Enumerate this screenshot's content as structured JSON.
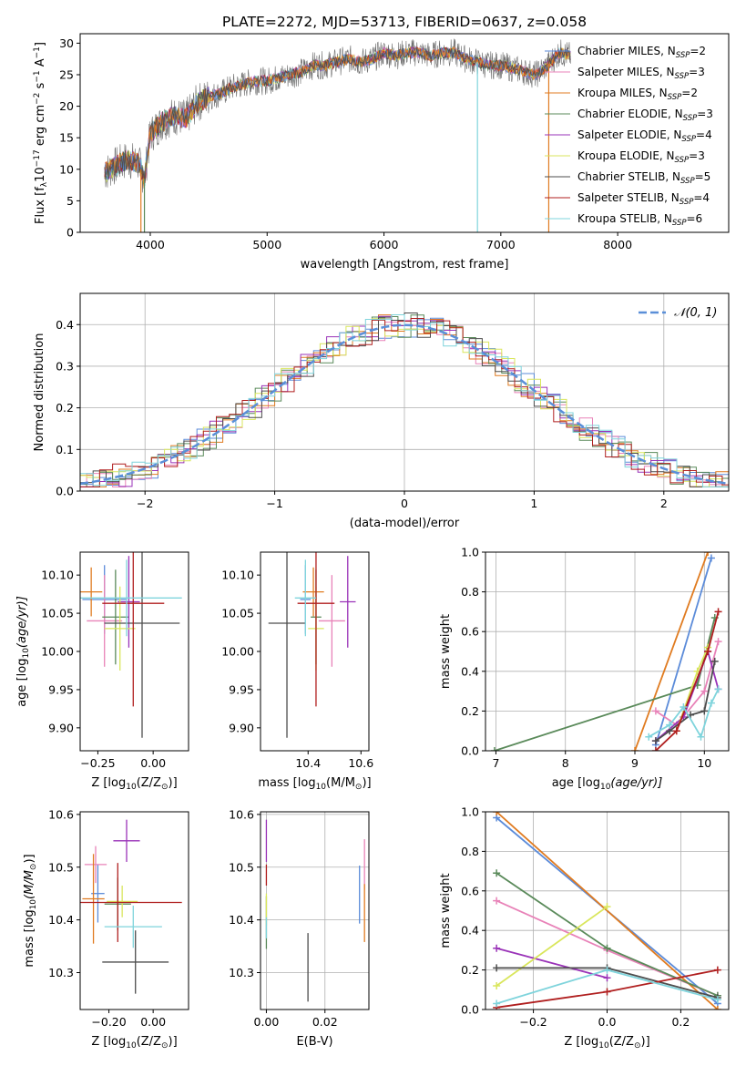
{
  "figure_title": "PLATE=2272, MJD=53713, FIBERID=0637, z=0.058",
  "colors": [
    "#5b8bd9",
    "#e882b8",
    "#e07b20",
    "#5a8a5a",
    "#9a33b8",
    "#d9e65c",
    "#4d4d4d",
    "#b01f1f",
    "#7fd4dc"
  ],
  "chart_data": [
    {
      "id": "spectrum",
      "type": "line",
      "title": "PLATE=2272, MJD=53713, FIBERID=0637, z=0.058",
      "xlabel": "wavelength [Angstrom, rest frame]",
      "ylabel_main": "Flux [f",
      "ylabel_sub": "λ",
      "ylabel_rest": "10",
      "ylabel_exp": "−17",
      "ylabel_tail": " erg cm",
      "ylabel_exp2": "−2",
      "ylabel_tail2": " s",
      "ylabel_exp3": "−1",
      "ylabel_tail3": " A",
      "ylabel_exp4": "−1",
      "ylabel_end": "]",
      "xlim": [
        3400,
        8950
      ],
      "ylim": [
        0,
        31.5
      ],
      "xticks": [
        4000,
        5000,
        6000,
        7000,
        8000
      ],
      "yticks": [
        0,
        5,
        10,
        15,
        20,
        25,
        30
      ],
      "series_anchors": {
        "x": [
          3610,
          3700,
          3800,
          3900,
          3950,
          4000,
          4100,
          4200,
          4300,
          4400,
          4500,
          4600,
          4700,
          4800,
          4900,
          5000,
          5100,
          5200,
          5300,
          5400,
          5500,
          5600,
          5700,
          5800,
          5900,
          6000,
          6100,
          6200,
          6300,
          6400,
          6500,
          6600,
          6700,
          6800,
          6900,
          7000,
          7100,
          7200,
          7300,
          7400,
          7500,
          7600
        ],
        "y": [
          9.5,
          10.5,
          11.5,
          11.0,
          8.5,
          15.5,
          17.5,
          18.5,
          18.0,
          20.5,
          21.5,
          22.0,
          23.0,
          23.5,
          24.0,
          24.0,
          24.5,
          25.0,
          25.5,
          26.5,
          26.5,
          27.0,
          27.5,
          27.0,
          27.5,
          28.5,
          28.0,
          28.5,
          28.5,
          28.0,
          28.5,
          28.5,
          27.5,
          27.0,
          26.5,
          26.5,
          26.0,
          25.5,
          25.0,
          26.5,
          28.5,
          28.0
        ]
      },
      "legend": [
        {
          "main": "Chabrier MILES, N",
          "sub": "SSP",
          "tail": "=2"
        },
        {
          "main": "Salpeter MILES, N",
          "sub": "SSP",
          "tail": "=3"
        },
        {
          "main": "Kroupa MILES, N",
          "sub": "SSP",
          "tail": "=2"
        },
        {
          "main": "Chabrier ELODIE, N",
          "sub": "SSP",
          "tail": "=3"
        },
        {
          "main": "Salpeter ELODIE, N",
          "sub": "SSP",
          "tail": "=4"
        },
        {
          "main": "Kroupa ELODIE, N",
          "sub": "SSP",
          "tail": "=3"
        },
        {
          "main": "Chabrier STELIB, N",
          "sub": "SSP",
          "tail": "=5"
        },
        {
          "main": "Salpeter STELIB, N",
          "sub": "SSP",
          "tail": "=4"
        },
        {
          "main": "Kroupa STELIB, N",
          "sub": "SSP",
          "tail": "=6"
        }
      ]
    },
    {
      "id": "residuals",
      "type": "line",
      "xlabel": "(data-model)/error",
      "ylabel": "Normed distribution",
      "xlim": [
        -2.5,
        2.5
      ],
      "ylim": [
        0,
        0.475
      ],
      "xticks": [
        -2,
        -1,
        0,
        1,
        2
      ],
      "yticks": [
        0.0,
        0.1,
        0.2,
        0.3,
        0.4
      ],
      "grid": true,
      "legend_label": "𝒩(0, 1)",
      "legend_position": "top-right",
      "bin_width": 0.1
    },
    {
      "id": "age-vs-Z",
      "type": "scatter",
      "xlabel": "Z [log",
      "xlabel_sub": "10",
      "xlabel_rest": "(Z/Z",
      "xlabel_sun": "⊙",
      "xlabel_end": ")]",
      "ylabel": "age  [log",
      "ylabel_sub": "10",
      "ylabel_rest": "(age/yr)]",
      "xlim": [
        -0.33,
        0.16
      ],
      "ylim": [
        9.87,
        10.13
      ],
      "xticks": [
        -0.25,
        0.0
      ],
      "xticklabels": [
        "−0.25",
        "0.00"
      ],
      "yticks": [
        9.9,
        9.95,
        10.0,
        10.05,
        10.1
      ],
      "yticklabels": [
        "9.90",
        "9.95",
        "10.00",
        "10.05",
        "10.10"
      ],
      "points": [
        {
          "x": -0.22,
          "xerr": 0.1,
          "y": 10.068,
          "yerr": 0.045
        },
        {
          "x": -0.22,
          "xerr": 0.08,
          "y": 10.04,
          "yerr": 0.06
        },
        {
          "x": -0.28,
          "xerr": 0.05,
          "y": 10.078,
          "yerr": 0.032
        },
        {
          "x": -0.17,
          "xerr": 0.06,
          "y": 10.045,
          "yerr": 0.062
        },
        {
          "x": -0.11,
          "xerr": 0.05,
          "y": 10.065,
          "yerr": 0.06
        },
        {
          "x": -0.15,
          "xerr": 0.07,
          "y": 10.03,
          "yerr": 0.055
        },
        {
          "x": -0.05,
          "xerr": 0.17,
          "y": 10.037,
          "yerr": 0.15
        },
        {
          "x": -0.09,
          "xerr": 0.14,
          "y": 10.063,
          "yerr": 0.135
        },
        {
          "x": -0.12,
          "xerr": 0.25,
          "y": 10.07,
          "yerr": 0.05
        }
      ]
    },
    {
      "id": "age-vs-mass",
      "type": "scatter",
      "xlabel": "mass [log",
      "xlabel_sub": "10",
      "xlabel_rest": "(M/M",
      "xlabel_sun": "⊙",
      "xlabel_end": ")]",
      "xlim": [
        10.22,
        10.63
      ],
      "ylim": [
        9.87,
        10.13
      ],
      "xticks": [
        10.4,
        10.6
      ],
      "xticklabels": [
        "10.4",
        "10.6"
      ],
      "yticks": [
        9.9,
        9.95,
        10.0,
        10.05,
        10.1
      ],
      "yticklabels": [
        "9.90",
        "9.95",
        "10.00",
        "10.05",
        "10.10"
      ],
      "points": [
        {
          "x": 10.39,
          "xerr": 0.02,
          "y": 10.068,
          "yerr": 0.045
        },
        {
          "x": 10.49,
          "xerr": 0.05,
          "y": 10.04,
          "yerr": 0.06
        },
        {
          "x": 10.42,
          "xerr": 0.04,
          "y": 10.078,
          "yerr": 0.032
        },
        {
          "x": 10.43,
          "xerr": 0.02,
          "y": 10.045,
          "yerr": 0.062
        },
        {
          "x": 10.55,
          "xerr": 0.03,
          "y": 10.065,
          "yerr": 0.06
        },
        {
          "x": 10.43,
          "xerr": 0.03,
          "y": 10.03,
          "yerr": 0.055
        },
        {
          "x": 10.32,
          "xerr": 0.07,
          "y": 10.037,
          "yerr": 0.15
        },
        {
          "x": 10.43,
          "xerr": 0.07,
          "y": 10.063,
          "yerr": 0.135
        },
        {
          "x": 10.39,
          "xerr": 0.04,
          "y": 10.07,
          "yerr": 0.05
        }
      ]
    },
    {
      "id": "weight-vs-age",
      "type": "line",
      "xlabel": "age  [log",
      "xlabel_sub": "10",
      "xlabel_rest": "(age/yr)]",
      "ylabel": "mass weight",
      "xlim": [
        6.85,
        10.35
      ],
      "ylim": [
        0,
        1.0
      ],
      "xticks": [
        7,
        8,
        9,
        10
      ],
      "yticks": [
        0.0,
        0.2,
        0.4,
        0.6,
        0.8,
        1.0
      ],
      "grid": true,
      "series": [
        {
          "age": [
            9.3,
            10.1
          ],
          "weight": [
            0.03,
            0.97
          ]
        },
        {
          "age": [
            9.3,
            9.6,
            10.0,
            10.2
          ],
          "weight": [
            0.2,
            0.13,
            0.3,
            0.55
          ]
        },
        {
          "age": [
            9.0,
            10.05
          ],
          "weight": [
            0.0,
            1.0
          ]
        },
        {
          "age": [
            6.98,
            9.9,
            10.15
          ],
          "weight": [
            0.0,
            0.33,
            0.67
          ]
        },
        {
          "age": [
            9.3,
            9.7,
            10.05,
            10.2
          ],
          "weight": [
            0.05,
            0.17,
            0.5,
            0.31
          ]
        },
        {
          "age": [
            9.6,
            9.9,
            10.05
          ],
          "weight": [
            0.1,
            0.4,
            0.52
          ]
        },
        {
          "age": [
            9.3,
            9.5,
            9.8,
            10.0,
            10.15
          ],
          "weight": [
            0.05,
            0.1,
            0.18,
            0.2,
            0.45
          ]
        },
        {
          "age": [
            9.3,
            9.6,
            10.05,
            10.2
          ],
          "weight": [
            0.0,
            0.1,
            0.5,
            0.7
          ]
        },
        {
          "age": [
            9.2,
            9.5,
            9.7,
            9.95,
            10.1,
            10.2
          ],
          "weight": [
            0.07,
            0.13,
            0.22,
            0.07,
            0.24,
            0.31
          ]
        }
      ]
    },
    {
      "id": "mass-vs-Z",
      "type": "scatter",
      "xlabel": "Z [log",
      "xlabel_sub": "10",
      "xlabel_rest": "(Z/Z",
      "xlabel_sun": "⊙",
      "xlabel_end": ")]",
      "ylabel": "mass [log",
      "ylabel_sub": "10",
      "ylabel_rest": "(M/M",
      "ylabel_sun": "⊙",
      "ylabel_end": ")]",
      "xlim": [
        -0.33,
        0.16
      ],
      "ylim": [
        10.23,
        10.605
      ],
      "xticks": [
        -0.2,
        0.0
      ],
      "xticklabels": [
        "−0.20",
        "0.00"
      ],
      "yticks": [
        10.3,
        10.4,
        10.5,
        10.6
      ],
      "yticklabels": [
        "10.3",
        "10.4",
        "10.5",
        "10.6"
      ],
      "points": [
        {
          "x": -0.25,
          "xerr": 0.03,
          "y": 10.45,
          "yerr": 0.055
        },
        {
          "x": -0.26,
          "xerr": 0.05,
          "y": 10.505,
          "yerr": 0.035
        },
        {
          "x": -0.27,
          "xerr": 0.05,
          "y": 10.44,
          "yerr": 0.085
        },
        {
          "x": -0.16,
          "xerr": 0.06,
          "y": 10.43,
          "yerr": 0.05
        },
        {
          "x": -0.12,
          "xerr": 0.06,
          "y": 10.55,
          "yerr": 0.04
        },
        {
          "x": -0.14,
          "xerr": 0.07,
          "y": 10.435,
          "yerr": 0.03
        },
        {
          "x": -0.08,
          "xerr": 0.15,
          "y": 10.32,
          "yerr": 0.06
        },
        {
          "x": -0.16,
          "xerr": 0.29,
          "y": 10.433,
          "yerr": 0.075
        },
        {
          "x": -0.09,
          "xerr": 0.13,
          "y": 10.387,
          "yerr": 0.04
        }
      ]
    },
    {
      "id": "mass-vs-EBV",
      "type": "scatter",
      "xlabel": "E(B-V)",
      "xlim": [
        -0.002,
        0.035
      ],
      "ylim": [
        10.23,
        10.605
      ],
      "xticks": [
        0.0,
        0.02
      ],
      "xticklabels": [
        "0.00",
        "0.02"
      ],
      "yticks": [
        10.3,
        10.4,
        10.5,
        10.6
      ],
      "yticklabels": [
        "10.3",
        "10.4",
        "10.5",
        "10.6"
      ],
      "grid": true,
      "points": [
        {
          "x": 0.0318,
          "y": 10.448,
          "yerr": 0.055
        },
        {
          "x": 0.0335,
          "y": 10.505,
          "yerr": 0.048
        },
        {
          "x": 0.0335,
          "y": 10.413,
          "yerr": 0.055
        },
        {
          "x": 0.0,
          "y": 10.395,
          "yerr": 0.05
        },
        {
          "x": 0.0,
          "y": 10.55,
          "yerr": 0.04
        },
        {
          "x": 0.0,
          "y": 10.42,
          "yerr": 0.03
        },
        {
          "x": 0.0142,
          "y": 10.31,
          "yerr": 0.065
        },
        {
          "x": 0.0,
          "y": 10.485,
          "yerr": 0.02
        },
        {
          "x": 0.0,
          "y": 10.385,
          "yerr": 0.02
        }
      ]
    },
    {
      "id": "weight-vs-Z",
      "type": "line",
      "xlabel": "Z [log",
      "xlabel_sub": "10",
      "xlabel_rest": "(Z/Z",
      "xlabel_sun": "⊙",
      "xlabel_end": ")]",
      "ylabel": "mass weight",
      "xlim": [
        -0.33,
        0.33
      ],
      "ylim": [
        0,
        1.0
      ],
      "xticks": [
        -0.2,
        0.0,
        0.2
      ],
      "xticklabels": [
        "−0.2",
        "0.0",
        "0.2"
      ],
      "yticks": [
        0.0,
        0.2,
        0.4,
        0.6,
        0.8,
        1.0
      ],
      "grid": true,
      "series": [
        {
          "Z": [
            -0.3,
            0.3
          ],
          "weight": [
            0.97,
            0.03
          ]
        },
        {
          "Z": [
            -0.3,
            0.0,
            0.3
          ],
          "weight": [
            0.55,
            0.3,
            0.07
          ]
        },
        {
          "Z": [
            -0.3,
            0.3
          ],
          "weight": [
            1.0,
            0.0
          ]
        },
        {
          "Z": [
            -0.3,
            0.0,
            0.3
          ],
          "weight": [
            0.69,
            0.31,
            0.07
          ]
        },
        {
          "Z": [
            -0.3,
            0.0
          ],
          "weight": [
            0.31,
            0.16
          ]
        },
        {
          "Z": [
            -0.3,
            0.0
          ],
          "weight": [
            0.12,
            0.52
          ]
        },
        {
          "Z": [
            -0.3,
            0.0,
            0.3
          ],
          "weight": [
            0.21,
            0.21,
            0.06
          ]
        },
        {
          "Z": [
            -0.3,
            0.0,
            0.3
          ],
          "weight": [
            0.01,
            0.09,
            0.2
          ]
        },
        {
          "Z": [
            -0.3,
            0.0,
            0.3
          ],
          "weight": [
            0.03,
            0.2,
            0.05
          ]
        }
      ]
    }
  ]
}
